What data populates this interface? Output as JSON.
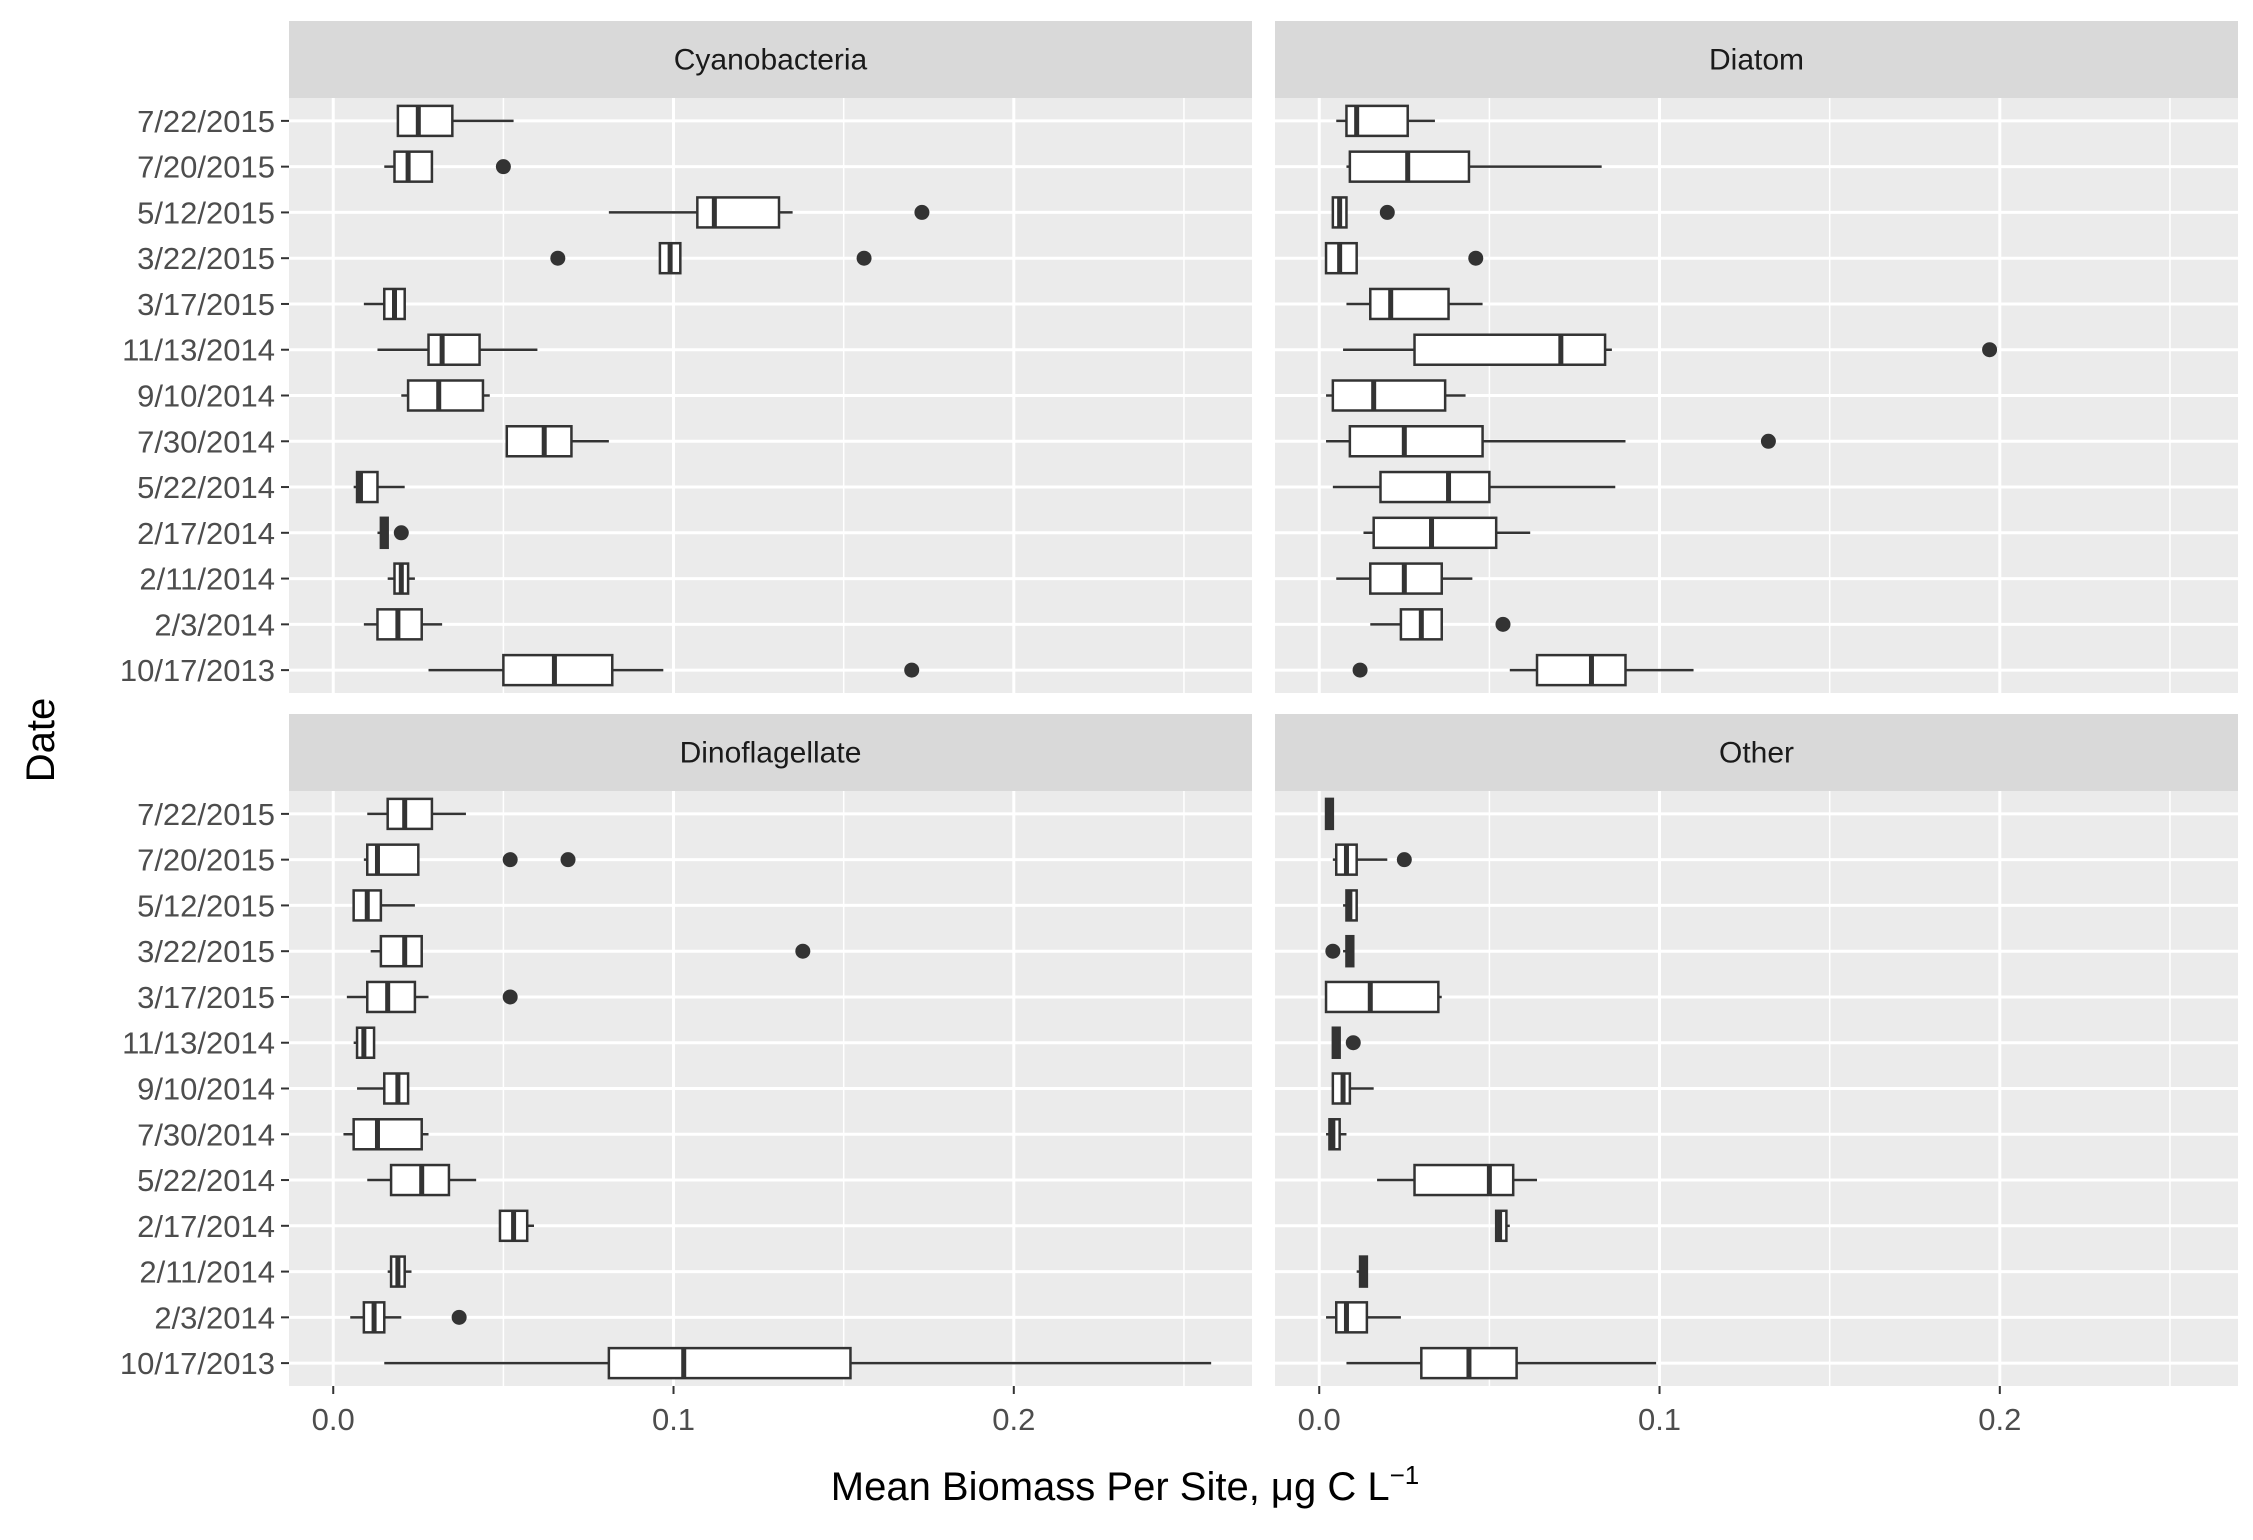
{
  "chart_data": {
    "type": "boxplot",
    "orientation": "horizontal",
    "layout": "2x2 facets, shared axes",
    "xlabel": "Mean Biomass Per Site, μg C L",
    "xlabel_superscript": "−1",
    "ylabel": "Date",
    "xlim": [
      -0.013,
      0.27
    ],
    "xticks": [
      0.0,
      0.1,
      0.2
    ],
    "xtick_labels": [
      "0.0",
      "0.1",
      "0.2"
    ],
    "grid": true,
    "legend": "none",
    "categories": [
      "7/22/2015",
      "7/20/2015",
      "5/12/2015",
      "3/22/2015",
      "3/17/2015",
      "11/13/2014",
      "9/10/2014",
      "7/30/2014",
      "5/22/2014",
      "2/17/2014",
      "2/11/2014",
      "2/3/2014",
      "10/17/2013"
    ],
    "colors": {
      "panel": "#ebebeb",
      "grid": "#ffffff",
      "strip": "#d9d9d9",
      "box_fill": "#ffffff",
      "line": "#333333"
    },
    "facets": [
      {
        "name": "Cyanobacteria",
        "boxes": [
          {
            "category": "7/22/2015",
            "whisker_low": 0.019,
            "q1": 0.019,
            "median": 0.025,
            "q3": 0.035,
            "whisker_high": 0.053,
            "outliers": []
          },
          {
            "category": "7/20/2015",
            "whisker_low": 0.015,
            "q1": 0.018,
            "median": 0.022,
            "q3": 0.029,
            "whisker_high": 0.029,
            "outliers": [
              0.05
            ]
          },
          {
            "category": "5/12/2015",
            "whisker_low": 0.081,
            "q1": 0.107,
            "median": 0.112,
            "q3": 0.131,
            "whisker_high": 0.135,
            "outliers": [
              0.173
            ]
          },
          {
            "category": "3/22/2015",
            "whisker_low": 0.096,
            "q1": 0.096,
            "median": 0.099,
            "q3": 0.102,
            "whisker_high": 0.102,
            "outliers": [
              0.066,
              0.156
            ]
          },
          {
            "category": "3/17/2015",
            "whisker_low": 0.009,
            "q1": 0.015,
            "median": 0.018,
            "q3": 0.021,
            "whisker_high": 0.021,
            "outliers": []
          },
          {
            "category": "11/13/2014",
            "whisker_low": 0.013,
            "q1": 0.028,
            "median": 0.032,
            "q3": 0.043,
            "whisker_high": 0.06,
            "outliers": []
          },
          {
            "category": "9/10/2014",
            "whisker_low": 0.02,
            "q1": 0.022,
            "median": 0.031,
            "q3": 0.044,
            "whisker_high": 0.046,
            "outliers": []
          },
          {
            "category": "7/30/2014",
            "whisker_low": 0.051,
            "q1": 0.051,
            "median": 0.062,
            "q3": 0.07,
            "whisker_high": 0.081,
            "outliers": []
          },
          {
            "category": "5/22/2014",
            "whisker_low": 0.006,
            "q1": 0.007,
            "median": 0.008,
            "q3": 0.013,
            "whisker_high": 0.021,
            "outliers": []
          },
          {
            "category": "2/17/2014",
            "whisker_low": 0.013,
            "q1": 0.014,
            "median": 0.015,
            "q3": 0.016,
            "whisker_high": 0.016,
            "outliers": [
              0.02
            ]
          },
          {
            "category": "2/11/2014",
            "whisker_low": 0.016,
            "q1": 0.018,
            "median": 0.02,
            "q3": 0.022,
            "whisker_high": 0.024,
            "outliers": []
          },
          {
            "category": "2/3/2014",
            "whisker_low": 0.009,
            "q1": 0.013,
            "median": 0.019,
            "q3": 0.026,
            "whisker_high": 0.032,
            "outliers": []
          },
          {
            "category": "10/17/2013",
            "whisker_low": 0.028,
            "q1": 0.05,
            "median": 0.065,
            "q3": 0.082,
            "whisker_high": 0.097,
            "outliers": [
              0.17
            ]
          }
        ]
      },
      {
        "name": "Diatom",
        "boxes": [
          {
            "category": "7/22/2015",
            "whisker_low": 0.005,
            "q1": 0.008,
            "median": 0.011,
            "q3": 0.026,
            "whisker_high": 0.034,
            "outliers": []
          },
          {
            "category": "7/20/2015",
            "whisker_low": 0.008,
            "q1": 0.009,
            "median": 0.026,
            "q3": 0.044,
            "whisker_high": 0.083,
            "outliers": []
          },
          {
            "category": "5/12/2015",
            "whisker_low": 0.004,
            "q1": 0.004,
            "median": 0.006,
            "q3": 0.008,
            "whisker_high": 0.008,
            "outliers": [
              0.02
            ]
          },
          {
            "category": "3/22/2015",
            "whisker_low": 0.002,
            "q1": 0.002,
            "median": 0.006,
            "q3": 0.011,
            "whisker_high": 0.011,
            "outliers": [
              0.046
            ]
          },
          {
            "category": "3/17/2015",
            "whisker_low": 0.008,
            "q1": 0.015,
            "median": 0.021,
            "q3": 0.038,
            "whisker_high": 0.048,
            "outliers": []
          },
          {
            "category": "11/13/2014",
            "whisker_low": 0.007,
            "q1": 0.028,
            "median": 0.071,
            "q3": 0.084,
            "whisker_high": 0.086,
            "outliers": [
              0.197
            ]
          },
          {
            "category": "9/10/2014",
            "whisker_low": 0.002,
            "q1": 0.004,
            "median": 0.016,
            "q3": 0.037,
            "whisker_high": 0.043,
            "outliers": []
          },
          {
            "category": "7/30/2014",
            "whisker_low": 0.002,
            "q1": 0.009,
            "median": 0.025,
            "q3": 0.048,
            "whisker_high": 0.09,
            "outliers": [
              0.132
            ]
          },
          {
            "category": "5/22/2014",
            "whisker_low": 0.004,
            "q1": 0.018,
            "median": 0.038,
            "q3": 0.05,
            "whisker_high": 0.087,
            "outliers": []
          },
          {
            "category": "2/17/2014",
            "whisker_low": 0.013,
            "q1": 0.016,
            "median": 0.033,
            "q3": 0.052,
            "whisker_high": 0.062,
            "outliers": []
          },
          {
            "category": "2/11/2014",
            "whisker_low": 0.005,
            "q1": 0.015,
            "median": 0.025,
            "q3": 0.036,
            "whisker_high": 0.045,
            "outliers": []
          },
          {
            "category": "2/3/2014",
            "whisker_low": 0.015,
            "q1": 0.024,
            "median": 0.03,
            "q3": 0.036,
            "whisker_high": 0.036,
            "outliers": [
              0.054
            ]
          },
          {
            "category": "10/17/2013",
            "whisker_low": 0.056,
            "q1": 0.064,
            "median": 0.08,
            "q3": 0.09,
            "whisker_high": 0.11,
            "outliers": [
              0.012
            ]
          }
        ]
      },
      {
        "name": "Dinoflagellate",
        "boxes": [
          {
            "category": "7/22/2015",
            "whisker_low": 0.01,
            "q1": 0.016,
            "median": 0.021,
            "q3": 0.029,
            "whisker_high": 0.039,
            "outliers": []
          },
          {
            "category": "7/20/2015",
            "whisker_low": 0.009,
            "q1": 0.01,
            "median": 0.013,
            "q3": 0.025,
            "whisker_high": 0.025,
            "outliers": [
              0.052,
              0.069
            ]
          },
          {
            "category": "5/12/2015",
            "whisker_low": 0.006,
            "q1": 0.006,
            "median": 0.01,
            "q3": 0.014,
            "whisker_high": 0.024,
            "outliers": []
          },
          {
            "category": "3/22/2015",
            "whisker_low": 0.011,
            "q1": 0.014,
            "median": 0.021,
            "q3": 0.026,
            "whisker_high": 0.026,
            "outliers": [
              0.138
            ]
          },
          {
            "category": "3/17/2015",
            "whisker_low": 0.004,
            "q1": 0.01,
            "median": 0.016,
            "q3": 0.024,
            "whisker_high": 0.028,
            "outliers": [
              0.052
            ]
          },
          {
            "category": "11/13/2014",
            "whisker_low": 0.006,
            "q1": 0.007,
            "median": 0.009,
            "q3": 0.012,
            "whisker_high": 0.012,
            "outliers": []
          },
          {
            "category": "9/10/2014",
            "whisker_low": 0.007,
            "q1": 0.015,
            "median": 0.019,
            "q3": 0.022,
            "whisker_high": 0.022,
            "outliers": []
          },
          {
            "category": "7/30/2014",
            "whisker_low": 0.003,
            "q1": 0.006,
            "median": 0.013,
            "q3": 0.026,
            "whisker_high": 0.028,
            "outliers": []
          },
          {
            "category": "5/22/2014",
            "whisker_low": 0.01,
            "q1": 0.017,
            "median": 0.026,
            "q3": 0.034,
            "whisker_high": 0.042,
            "outliers": []
          },
          {
            "category": "2/17/2014",
            "whisker_low": 0.049,
            "q1": 0.049,
            "median": 0.053,
            "q3": 0.057,
            "whisker_high": 0.059,
            "outliers": []
          },
          {
            "category": "2/11/2014",
            "whisker_low": 0.016,
            "q1": 0.017,
            "median": 0.019,
            "q3": 0.021,
            "whisker_high": 0.023,
            "outliers": []
          },
          {
            "category": "2/3/2014",
            "whisker_low": 0.005,
            "q1": 0.009,
            "median": 0.012,
            "q3": 0.015,
            "whisker_high": 0.02,
            "outliers": [
              0.037
            ]
          },
          {
            "category": "10/17/2013",
            "whisker_low": 0.015,
            "q1": 0.081,
            "median": 0.103,
            "q3": 0.152,
            "whisker_high": 0.258,
            "outliers": []
          }
        ]
      },
      {
        "name": "Other",
        "boxes": [
          {
            "category": "7/22/2015",
            "whisker_low": 0.002,
            "q1": 0.002,
            "median": 0.003,
            "q3": 0.004,
            "whisker_high": 0.004,
            "outliers": []
          },
          {
            "category": "7/20/2015",
            "whisker_low": 0.004,
            "q1": 0.005,
            "median": 0.008,
            "q3": 0.011,
            "whisker_high": 0.02,
            "outliers": [
              0.025
            ]
          },
          {
            "category": "5/12/2015",
            "whisker_low": 0.007,
            "q1": 0.008,
            "median": 0.009,
            "q3": 0.011,
            "whisker_high": 0.011,
            "outliers": []
          },
          {
            "category": "3/22/2015",
            "whisker_low": 0.007,
            "q1": 0.008,
            "median": 0.009,
            "q3": 0.01,
            "whisker_high": 0.01,
            "outliers": [
              0.004
            ]
          },
          {
            "category": "3/17/2015",
            "whisker_low": 0.002,
            "q1": 0.002,
            "median": 0.015,
            "q3": 0.035,
            "whisker_high": 0.036,
            "outliers": []
          },
          {
            "category": "11/13/2014",
            "whisker_low": 0.004,
            "q1": 0.004,
            "median": 0.005,
            "q3": 0.006,
            "whisker_high": 0.006,
            "outliers": [
              0.01
            ]
          },
          {
            "category": "9/10/2014",
            "whisker_low": 0.004,
            "q1": 0.004,
            "median": 0.007,
            "q3": 0.009,
            "whisker_high": 0.016,
            "outliers": []
          },
          {
            "category": "7/30/2014",
            "whisker_low": 0.002,
            "q1": 0.003,
            "median": 0.004,
            "q3": 0.006,
            "whisker_high": 0.008,
            "outliers": []
          },
          {
            "category": "5/22/2014",
            "whisker_low": 0.017,
            "q1": 0.028,
            "median": 0.05,
            "q3": 0.057,
            "whisker_high": 0.064,
            "outliers": []
          },
          {
            "category": "2/17/2014",
            "whisker_low": 0.052,
            "q1": 0.052,
            "median": 0.053,
            "q3": 0.055,
            "whisker_high": 0.056,
            "outliers": []
          },
          {
            "category": "2/11/2014",
            "whisker_low": 0.011,
            "q1": 0.012,
            "median": 0.013,
            "q3": 0.014,
            "whisker_high": 0.014,
            "outliers": []
          },
          {
            "category": "2/3/2014",
            "whisker_low": 0.002,
            "q1": 0.005,
            "median": 0.008,
            "q3": 0.014,
            "whisker_high": 0.024,
            "outliers": []
          },
          {
            "category": "10/17/2013",
            "whisker_low": 0.008,
            "q1": 0.03,
            "median": 0.044,
            "q3": 0.058,
            "whisker_high": 0.099,
            "outliers": []
          }
        ]
      }
    ]
  }
}
